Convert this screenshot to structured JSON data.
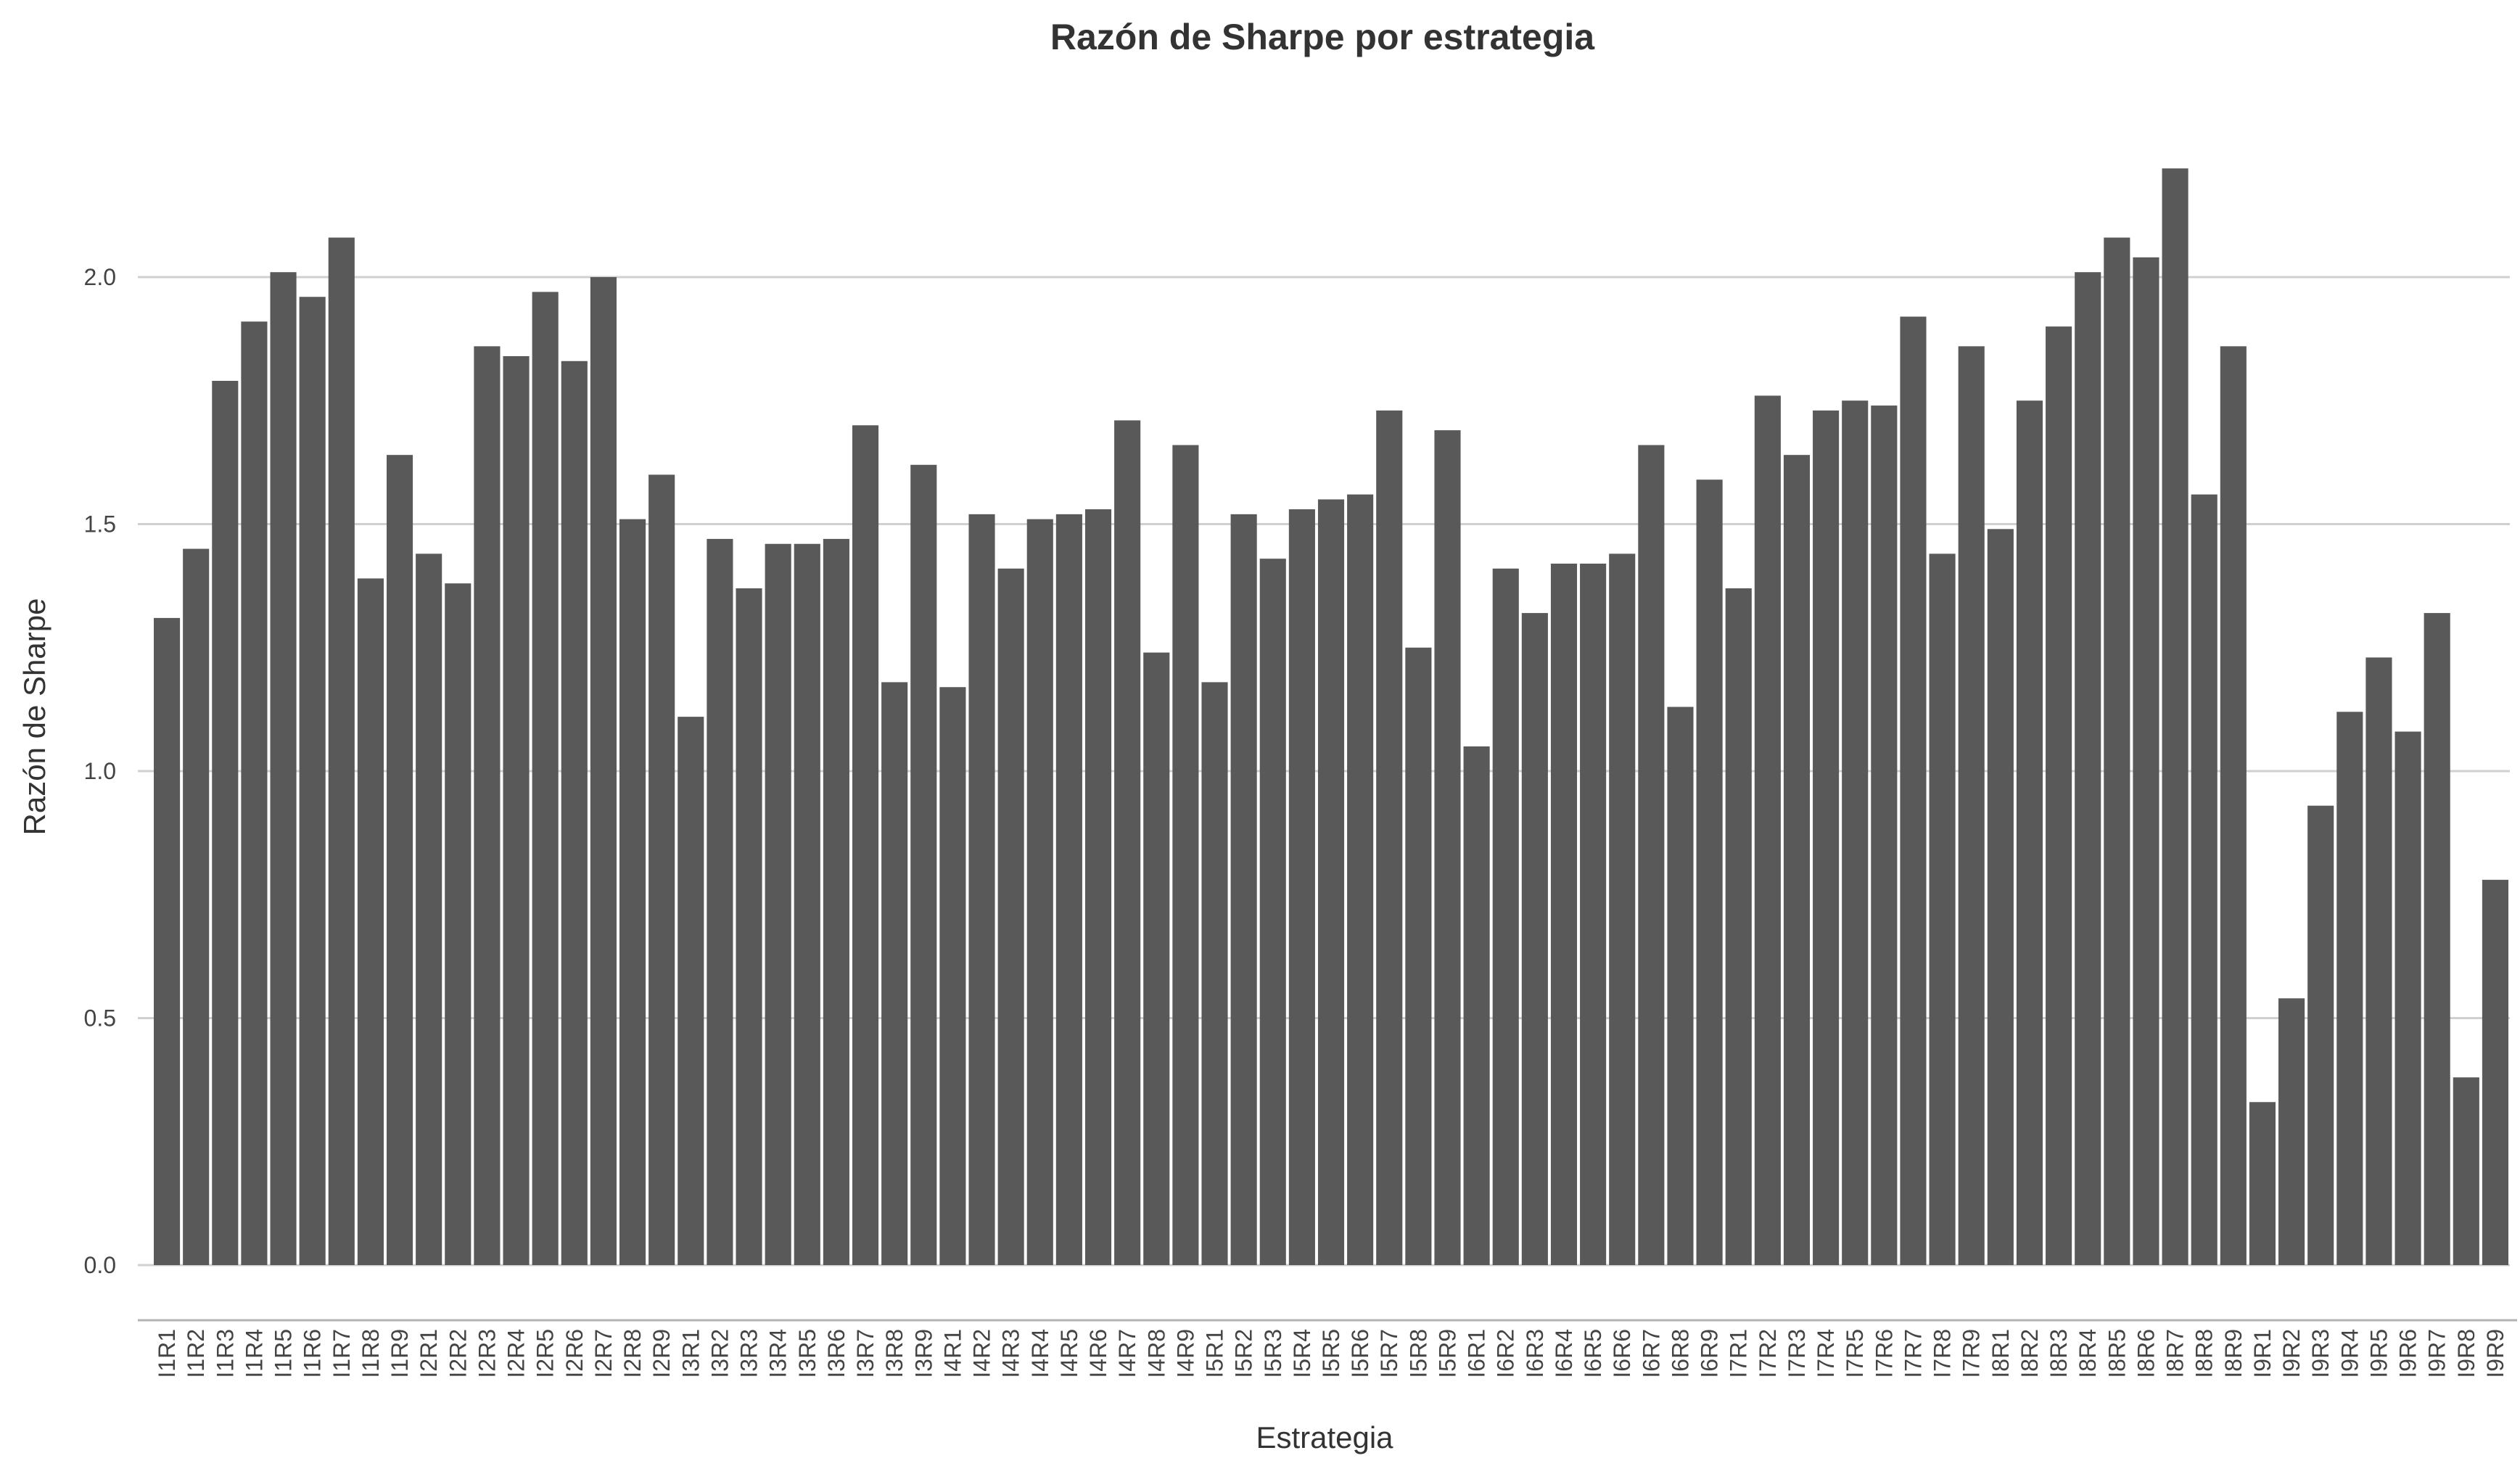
{
  "chart_data": {
    "type": "bar",
    "title": "Razón de Sharpe por estrategia",
    "xlabel": "Estrategia",
    "ylabel": "Razón de Sharpe",
    "ylim": [
      0,
      2.27
    ],
    "yticks": [
      "0.0",
      "0.5",
      "1.0",
      "1.5",
      "2.0"
    ],
    "grid": "horizontal",
    "bar_color": "#595959",
    "categories": [
      "I1R1",
      "I1R2",
      "I1R3",
      "I1R4",
      "I1R5",
      "I1R6",
      "I1R7",
      "I1R8",
      "I1R9",
      "I2R1",
      "I2R2",
      "I2R3",
      "I2R4",
      "I2R5",
      "I2R6",
      "I2R7",
      "I2R8",
      "I2R9",
      "I3R1",
      "I3R2",
      "I3R3",
      "I3R4",
      "I3R5",
      "I3R6",
      "I3R7",
      "I3R8",
      "I3R9",
      "I4R1",
      "I4R2",
      "I4R3",
      "I4R4",
      "I4R5",
      "I4R6",
      "I4R7",
      "I4R8",
      "I4R9",
      "I5R1",
      "I5R2",
      "I5R3",
      "I5R4",
      "I5R5",
      "I5R6",
      "I5R7",
      "I5R8",
      "I5R9",
      "I6R1",
      "I6R2",
      "I6R3",
      "I6R4",
      "I6R5",
      "I6R6",
      "I6R7",
      "I6R8",
      "I6R9",
      "I7R1",
      "I7R2",
      "I7R3",
      "I7R4",
      "I7R5",
      "I7R6",
      "I7R7",
      "I7R8",
      "I7R9",
      "I8R1",
      "I8R2",
      "I8R3",
      "I8R4",
      "I8R5",
      "I8R6",
      "I8R7",
      "I8R8",
      "I8R9",
      "I9R1",
      "I9R2",
      "I9R3",
      "I9R4",
      "I9R5",
      "I9R6",
      "I9R7",
      "I9R8",
      "I9R9"
    ],
    "values": [
      1.31,
      1.45,
      1.79,
      1.91,
      2.01,
      1.96,
      2.08,
      1.39,
      1.64,
      1.44,
      1.38,
      1.86,
      1.84,
      1.97,
      1.83,
      2.0,
      1.51,
      1.6,
      1.11,
      1.47,
      1.37,
      1.46,
      1.46,
      1.47,
      1.7,
      1.18,
      1.62,
      1.17,
      1.52,
      1.41,
      1.51,
      1.52,
      1.53,
      1.71,
      1.24,
      1.66,
      1.18,
      1.52,
      1.43,
      1.53,
      1.55,
      1.56,
      1.73,
      1.25,
      1.69,
      1.05,
      1.41,
      1.32,
      1.42,
      1.42,
      1.44,
      1.66,
      1.13,
      1.59,
      1.37,
      1.76,
      1.64,
      1.73,
      1.75,
      1.74,
      1.92,
      1.44,
      1.86,
      1.49,
      1.75,
      1.9,
      2.01,
      2.08,
      2.04,
      2.22,
      1.56,
      1.86,
      0.33,
      0.54,
      0.93,
      1.12,
      1.23,
      1.08,
      1.32,
      0.38,
      0.78
    ]
  }
}
